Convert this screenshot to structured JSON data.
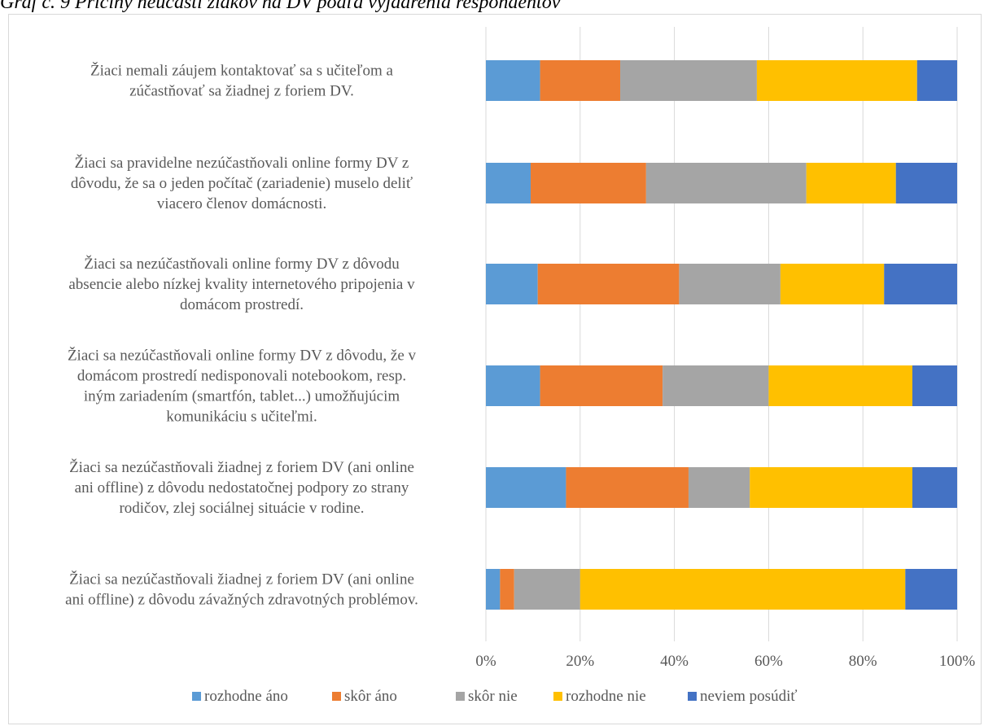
{
  "caption": "Graf č. 9 Príčiny neúčasti žiakov na DV podľa vyjadrenia respondentov",
  "chart_data": {
    "type": "bar",
    "orientation": "horizontal",
    "stacked": "percent",
    "categories": [
      [
        "Žiaci nemali záujem kontaktovať sa s učiteľom a",
        "zúčastňovať sa žiadnej z foriem  DV."
      ],
      [
        "Žiaci sa pravidelne nezúčastňovali online formy DV z",
        "dôvodu, že sa o jeden počítač (zariadenie) muselo deliť",
        "viacero členov domácnosti."
      ],
      [
        "Žiaci sa nezúčastňovali  online formy DV z dôvodu",
        "absencie  alebo nízkej kvality  internetového pripojenia v",
        "domácom prostredí."
      ],
      [
        "Žiaci sa nezúčastňovali online formy DV z dôvodu, že v",
        "domácom prostredí  nedisponovali notebookom, resp.",
        "iným  zariadením (smartfón, tablet...) umožňujúcim",
        "komunikáciu s učiteľmi."
      ],
      [
        "Žiaci sa nezúčastňovali žiadnej z foriem DV (ani online",
        "ani offline) z dôvodu nedostatočnej podpory zo strany",
        "rodičov, zlej  sociálnej situácie v rodine."
      ],
      [
        "Žiaci sa nezúčastňovali žiadnej z foriem DV (ani online",
        "ani offline)  z dôvodu závažných  zdravotných problémov."
      ]
    ],
    "series": [
      {
        "name": "rozhodne áno",
        "color": "#5b9bd5",
        "values": [
          11.5,
          9.5,
          11,
          11.5,
          17,
          3
        ]
      },
      {
        "name": "skôr áno",
        "color": "#ed7d31",
        "values": [
          17,
          24.5,
          30,
          26,
          26,
          3
        ]
      },
      {
        "name": "skôr nie",
        "color": "#a5a5a5",
        "values": [
          29,
          34,
          21.5,
          22.5,
          13,
          14
        ]
      },
      {
        "name": "rozhodne nie",
        "color": "#ffc000",
        "values": [
          34,
          19,
          22,
          30.5,
          34.5,
          69
        ]
      },
      {
        "name": "neviem posúdiť",
        "color": "#4472c4",
        "values": [
          8.5,
          13,
          15.5,
          9.5,
          9.5,
          11
        ]
      }
    ],
    "x_ticks": [
      "0%",
      "20%",
      "40%",
      "60%",
      "80%",
      "100%"
    ],
    "xlim": [
      0,
      100
    ],
    "gridlines": true,
    "legend_position": "bottom"
  }
}
